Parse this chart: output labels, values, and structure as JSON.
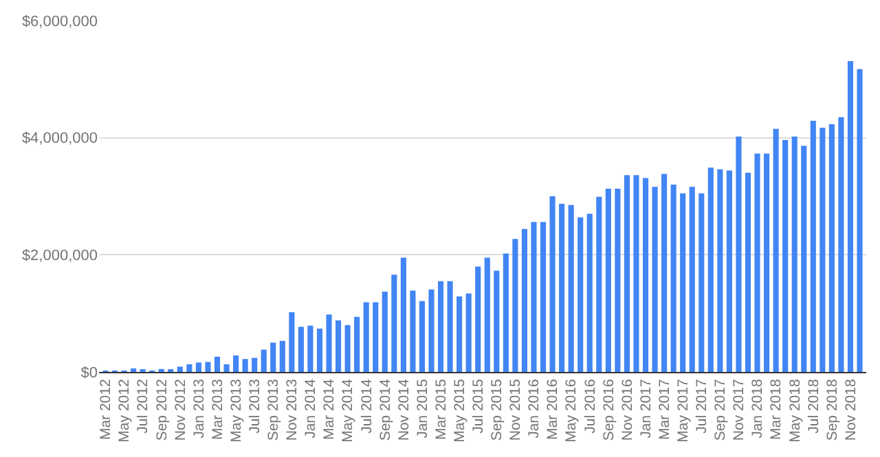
{
  "chart_data": {
    "type": "bar",
    "categories": [
      "Mar 2012",
      null,
      "May 2012",
      null,
      "Jul 2012",
      null,
      "Sep 2012",
      null,
      "Nov 2012",
      null,
      "Jan 2013",
      null,
      "Mar 2013",
      null,
      "May 2013",
      null,
      "Jul 2013",
      null,
      "Sep 2013",
      null,
      "Nov 2013",
      null,
      "Jan 2014",
      null,
      "Mar 2014",
      null,
      "May 2014",
      null,
      "Jul 2014",
      null,
      "Sep 2014",
      null,
      "Nov 2014",
      null,
      "Jan 2015",
      null,
      "Mar 2015",
      null,
      "May 2015",
      null,
      "Jul 2015",
      null,
      "Sep 2015",
      null,
      "Nov 2015",
      null,
      "Jan 2016",
      null,
      "Mar 2016",
      null,
      "May 2016",
      null,
      "Jul 2016",
      null,
      "Sep 2016",
      null,
      "Nov 2016",
      null,
      "Jan 2017",
      null,
      "Mar 2017",
      null,
      "May 2017",
      null,
      "Jul 2017",
      null,
      "Sep 2017",
      null,
      "Nov 2017",
      null,
      "Jan 2018",
      null,
      "Mar 2018",
      null,
      "May 2018",
      null,
      "Jul 2018",
      null,
      "Sep 2018",
      null,
      "Nov 2018",
      null
    ],
    "values": [
      5000,
      5000,
      5000,
      60000,
      40000,
      20000,
      50000,
      40000,
      90000,
      130000,
      160000,
      170000,
      260000,
      130000,
      280000,
      220000,
      240000,
      380000,
      500000,
      530000,
      1020000,
      770000,
      790000,
      740000,
      980000,
      880000,
      800000,
      940000,
      1190000,
      1190000,
      1370000,
      1660000,
      1950000,
      1390000,
      1210000,
      1410000,
      1550000,
      1550000,
      1290000,
      1340000,
      1800000,
      1950000,
      1730000,
      2020000,
      2270000,
      2440000,
      2560000,
      2560000,
      3000000,
      2870000,
      2850000,
      2640000,
      2700000,
      2990000,
      3130000,
      3130000,
      3360000,
      3360000,
      3310000,
      3160000,
      3380000,
      3200000,
      3050000,
      3160000,
      3050000,
      3490000,
      3460000,
      3440000,
      4020000,
      3400000,
      3730000,
      3730000,
      4150000,
      3960000,
      4020000,
      3860000,
      4290000,
      4170000,
      4230000,
      4350000,
      5310000,
      5170000
    ],
    "color": "#4285f4",
    "ylim": [
      0,
      6000000
    ],
    "yticks": [
      {
        "value": 0,
        "label": "$0"
      },
      {
        "value": 2000000,
        "label": "$2,000,000"
      },
      {
        "value": 4000000,
        "label": "$4,000,000"
      },
      {
        "value": 6000000,
        "label": "$6,000,000"
      }
    ],
    "grid": "y"
  }
}
